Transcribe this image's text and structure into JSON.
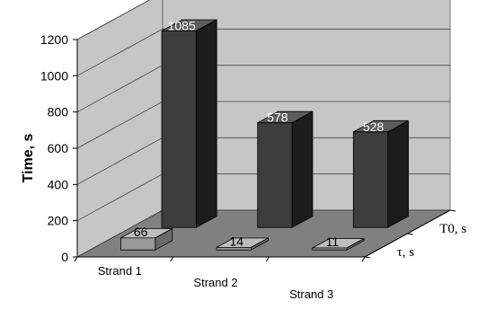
{
  "chart_data": {
    "type": "bar",
    "title": "",
    "ylabel": "Time, s",
    "ylim": [
      0,
      1200
    ],
    "yticks": [
      0,
      200,
      400,
      600,
      800,
      1000,
      1200
    ],
    "categories": [
      "Strand 1",
      "Strand 2",
      "Strand 3"
    ],
    "series": [
      {
        "name": "T0, s",
        "values": [
          1085,
          578,
          528
        ]
      },
      {
        "name": "τ, s",
        "values": [
          66,
          14,
          11
        ]
      }
    ],
    "grid": true,
    "colors": {
      "back_series": "#3d3d3d",
      "front_series": "#9a9a9a",
      "wall": "#c6c6c6",
      "floor": "#808080"
    }
  }
}
